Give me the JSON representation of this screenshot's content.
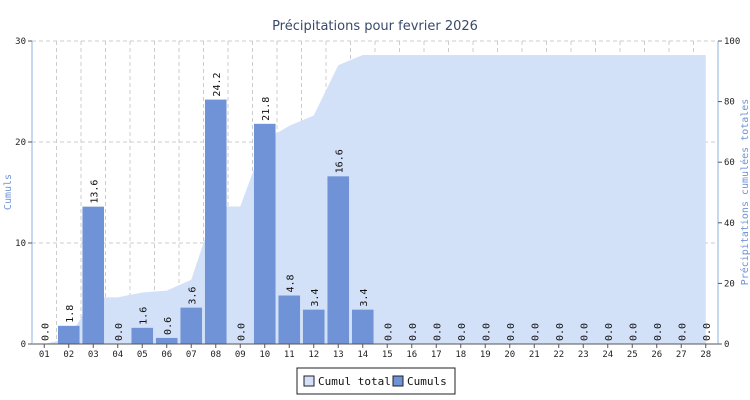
{
  "chart_data": {
    "type": "bar",
    "title": "Précipitations pour fevrier 2026",
    "categories": [
      "01",
      "02",
      "03",
      "04",
      "05",
      "06",
      "07",
      "08",
      "09",
      "10",
      "11",
      "12",
      "13",
      "14",
      "15",
      "16",
      "17",
      "18",
      "19",
      "20",
      "21",
      "22",
      "23",
      "24",
      "25",
      "26",
      "27",
      "28"
    ],
    "series": [
      {
        "name": "Cumuls",
        "type": "bar",
        "axis": "left",
        "color": "#6f93d6",
        "values": [
          0.0,
          1.8,
          13.6,
          0.0,
          1.6,
          0.6,
          3.6,
          24.2,
          0.0,
          21.8,
          4.8,
          3.4,
          16.6,
          3.4,
          0.0,
          0.0,
          0.0,
          0.0,
          0.0,
          0.0,
          0.0,
          0.0,
          0.0,
          0.0,
          0.0,
          0.0,
          0.0,
          0.0
        ],
        "labels": [
          "0.0",
          "1.8",
          "13.6",
          "0.0",
          "1.6",
          "0.6",
          "3.6",
          "24.2",
          "0.0",
          "21.8",
          "4.8",
          "3.4",
          "16.6",
          "3.4",
          "0.0",
          "0.0",
          "0.0",
          "0.0",
          "0.0",
          "0.0",
          "0.0",
          "0.0",
          "0.0",
          "0.0",
          "0.0",
          "0.0",
          "0.0",
          "0.0"
        ]
      },
      {
        "name": "Cumul total",
        "type": "area",
        "axis": "right",
        "color": "#d2e0f8",
        "values": [
          0.0,
          1.8,
          15.4,
          15.4,
          17.0,
          17.6,
          21.2,
          45.4,
          45.4,
          67.2,
          72.0,
          75.4,
          92.0,
          95.4,
          95.4,
          95.4,
          95.4,
          95.4,
          95.4,
          95.4,
          95.4,
          95.4,
          95.4,
          95.4,
          95.4,
          95.4,
          95.4,
          95.4
        ]
      }
    ],
    "ylabel": "Cumuls",
    "ylabel_right": "Précipitations cumulées totales",
    "ylim": [
      0,
      30
    ],
    "ylim_right": [
      0,
      100
    ],
    "yticks": [
      "0",
      "10",
      "20",
      "30"
    ],
    "yticks_right": [
      "0",
      "20",
      "40",
      "60",
      "80",
      "100"
    ],
    "grid": true,
    "legend_position": "bottom-center",
    "legend": [
      {
        "name": "Cumul total",
        "color": "#d2e0f8"
      },
      {
        "name": "Cumuls",
        "color": "#6f93d6"
      }
    ]
  }
}
